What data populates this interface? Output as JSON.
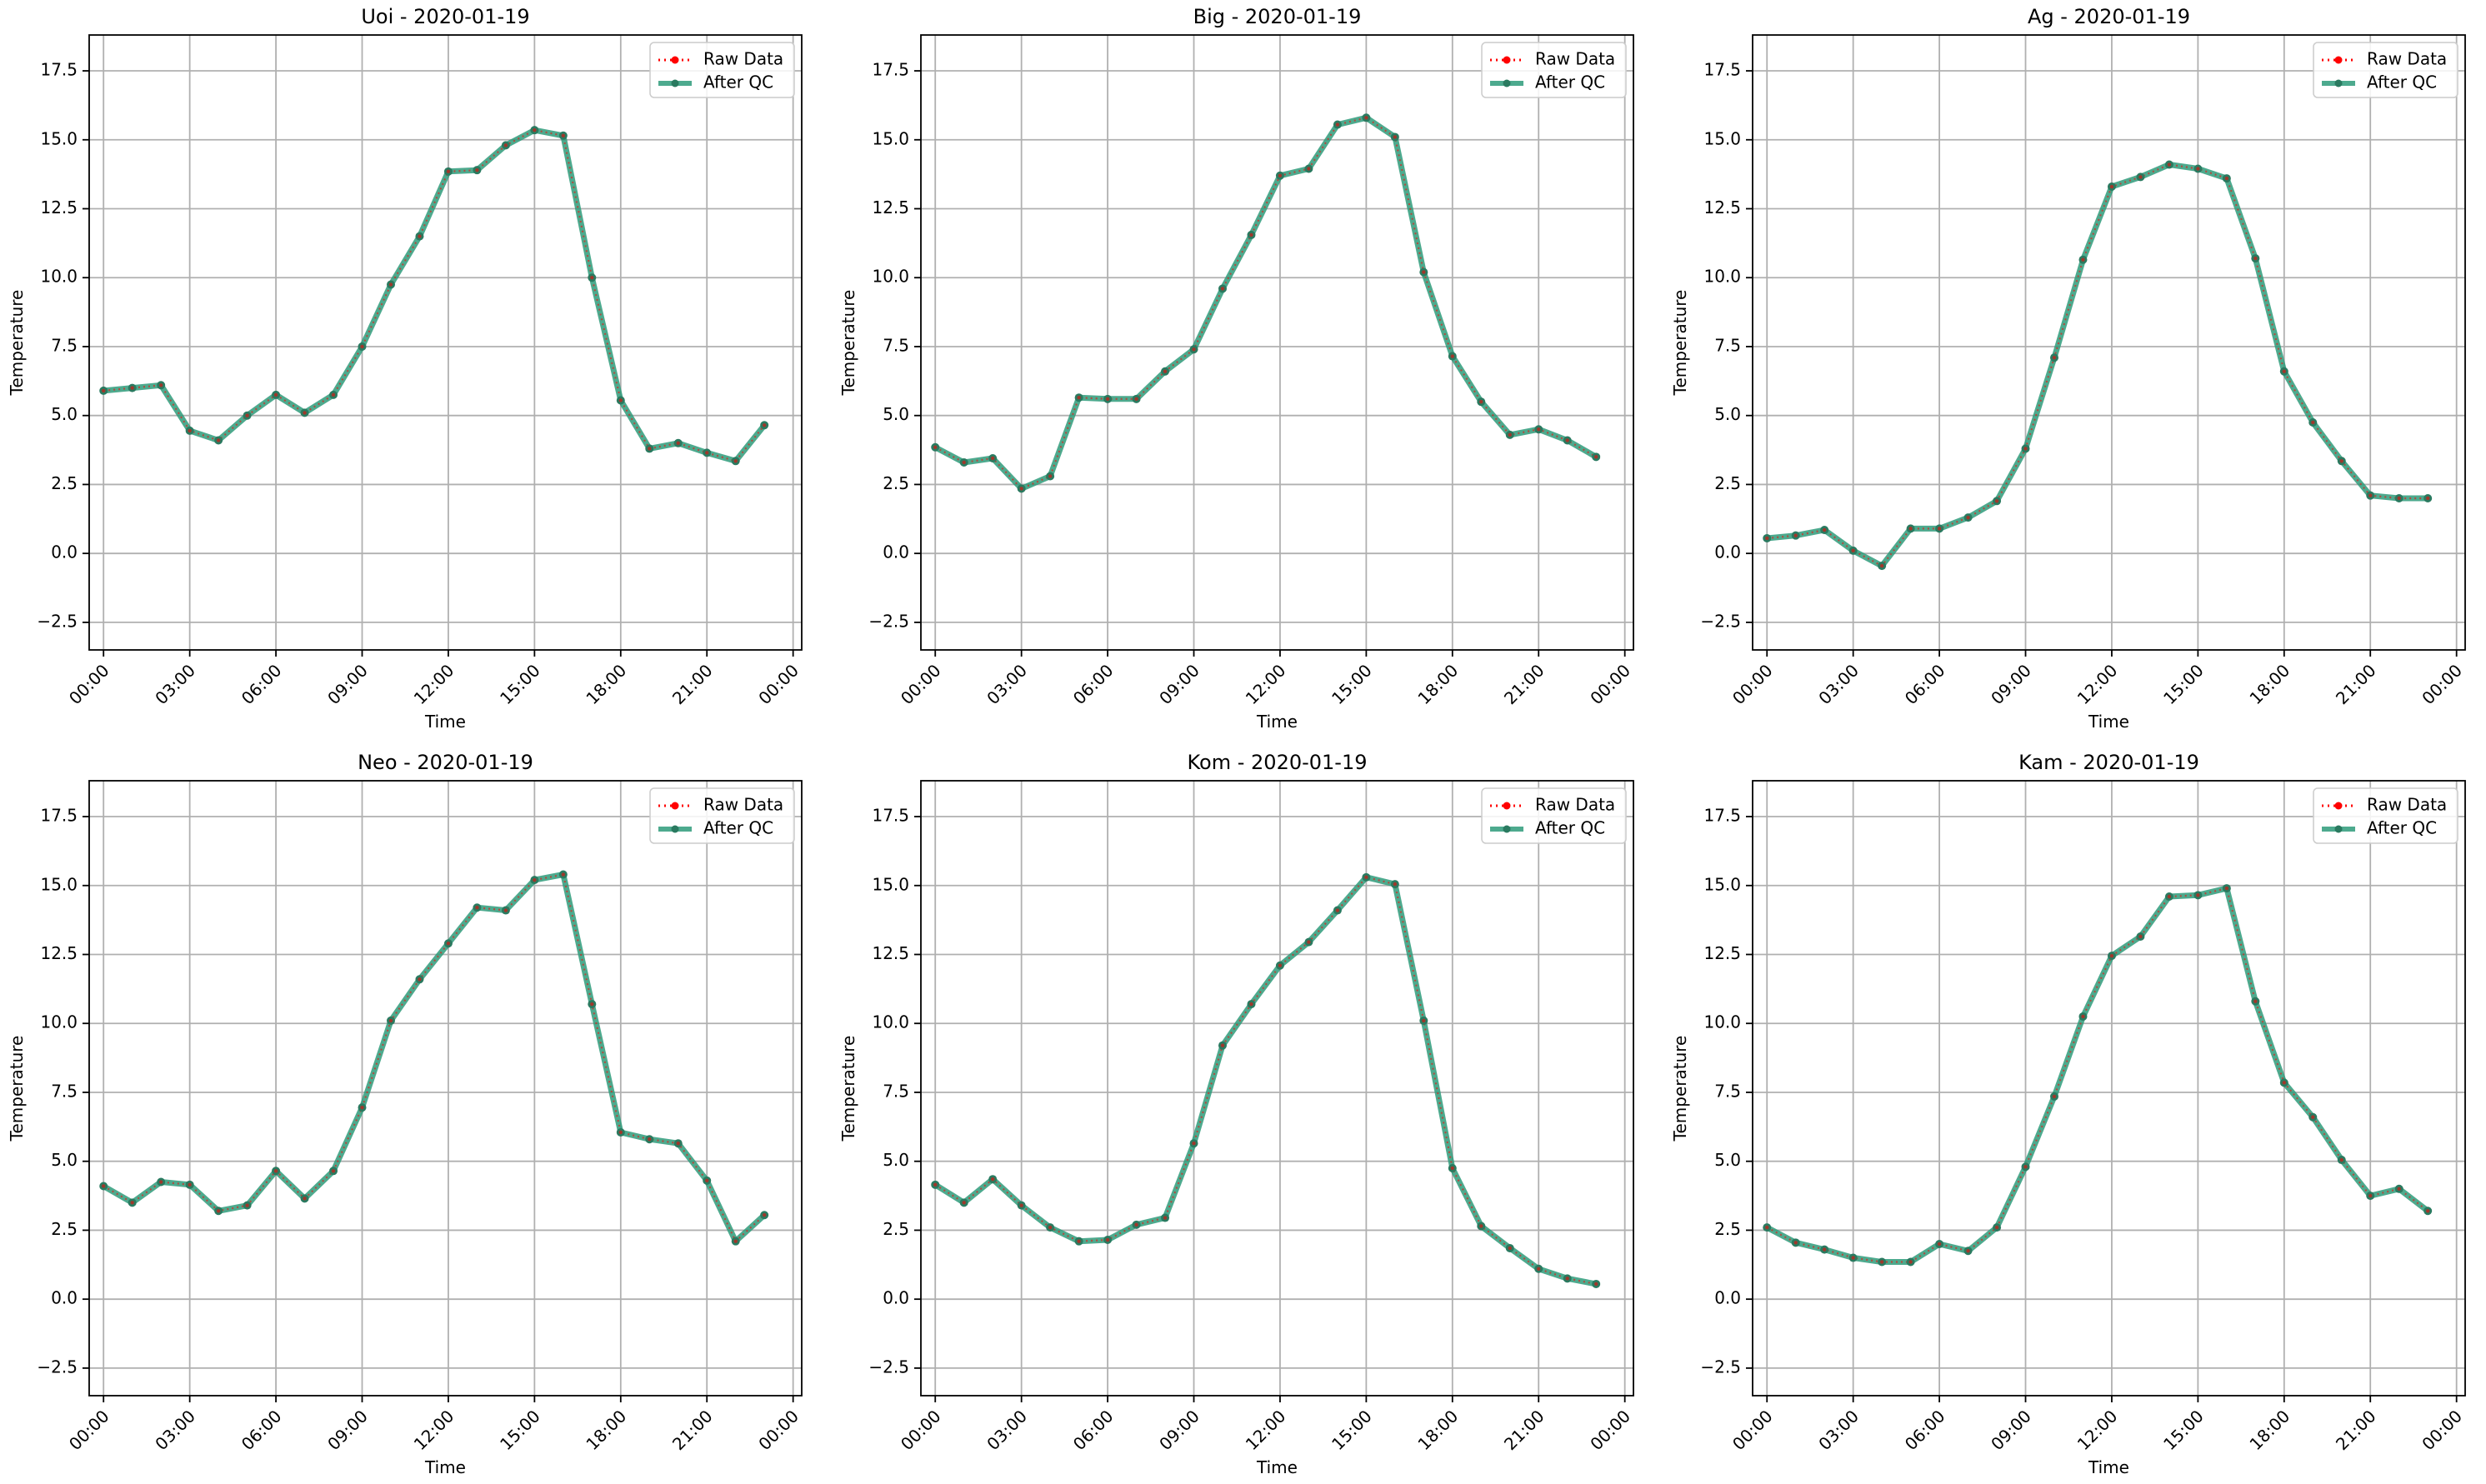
{
  "figure": {
    "colors": {
      "raw": "#ff0000",
      "qc": "#2e9b7a",
      "qc_marker": "#2a7a60",
      "grid": "#b0b0b0",
      "axis": "#000000"
    }
  },
  "chart_data": [
    {
      "type": "line",
      "title": "Uoi - 2020-01-19",
      "xlabel": "Time",
      "ylabel": "Temperature",
      "xticks": [
        "00:00",
        "03:00",
        "06:00",
        "09:00",
        "12:00",
        "15:00",
        "18:00",
        "21:00",
        "00:00"
      ],
      "yticks": [
        "−2.5",
        "0.0",
        "2.5",
        "5.0",
        "7.5",
        "10.0",
        "12.5",
        "15.0",
        "17.5"
      ],
      "ylim": [
        -3.5,
        18.8
      ],
      "xlim_hours": [
        -0.5,
        24.3
      ],
      "x_hours": [
        0,
        1,
        2,
        3,
        4,
        5,
        6,
        7,
        8,
        9,
        10,
        11,
        12,
        13,
        14,
        15,
        16,
        17,
        18,
        19,
        20,
        21,
        22,
        23
      ],
      "legend": [
        "Raw Data",
        "After QC"
      ],
      "legend_position": "top-right",
      "grid": true,
      "series": [
        {
          "name": "Raw Data",
          "values": [
            5.9,
            6.0,
            6.1,
            4.45,
            4.1,
            5.0,
            5.75,
            5.1,
            5.75,
            7.5,
            9.75,
            11.5,
            13.85,
            13.9,
            14.8,
            15.35,
            15.15,
            10.0,
            5.55,
            3.8,
            4.0,
            3.65,
            3.35,
            4.65
          ]
        },
        {
          "name": "After QC",
          "values": [
            5.9,
            6.0,
            6.1,
            4.45,
            4.1,
            5.0,
            5.75,
            5.1,
            5.75,
            7.5,
            9.75,
            11.5,
            13.85,
            13.9,
            14.8,
            15.35,
            15.15,
            10.0,
            5.55,
            3.8,
            4.0,
            3.65,
            3.35,
            4.65
          ]
        }
      ]
    },
    {
      "type": "line",
      "title": "Big - 2020-01-19",
      "xlabel": "Time",
      "ylabel": "Temperature",
      "xticks": [
        "00:00",
        "03:00",
        "06:00",
        "09:00",
        "12:00",
        "15:00",
        "18:00",
        "21:00",
        "00:00"
      ],
      "yticks": [
        "−2.5",
        "0.0",
        "2.5",
        "5.0",
        "7.5",
        "10.0",
        "12.5",
        "15.0",
        "17.5"
      ],
      "ylim": [
        -3.5,
        18.8
      ],
      "xlim_hours": [
        -0.5,
        24.3
      ],
      "x_hours": [
        0,
        1,
        2,
        3,
        4,
        5,
        6,
        7,
        8,
        9,
        10,
        11,
        12,
        13,
        14,
        15,
        16,
        17,
        18,
        19,
        20,
        21,
        22,
        23
      ],
      "legend": [
        "Raw Data",
        "After QC"
      ],
      "legend_position": "top-right",
      "grid": true,
      "series": [
        {
          "name": "Raw Data",
          "values": [
            3.85,
            3.3,
            3.45,
            2.35,
            2.8,
            5.65,
            5.6,
            5.6,
            6.6,
            7.4,
            9.6,
            11.55,
            13.7,
            13.95,
            15.55,
            15.8,
            15.1,
            10.2,
            7.15,
            5.5,
            4.3,
            4.5,
            4.1,
            3.5
          ]
        },
        {
          "name": "After QC",
          "values": [
            3.85,
            3.3,
            3.45,
            2.35,
            2.8,
            5.65,
            5.6,
            5.6,
            6.6,
            7.4,
            9.6,
            11.55,
            13.7,
            13.95,
            15.55,
            15.8,
            15.1,
            10.2,
            7.15,
            5.5,
            4.3,
            4.5,
            4.1,
            3.5
          ]
        }
      ]
    },
    {
      "type": "line",
      "title": "Ag - 2020-01-19",
      "xlabel": "Time",
      "ylabel": "Temperature",
      "xticks": [
        "00:00",
        "03:00",
        "06:00",
        "09:00",
        "12:00",
        "15:00",
        "18:00",
        "21:00",
        "00:00"
      ],
      "yticks": [
        "−2.5",
        "0.0",
        "2.5",
        "5.0",
        "7.5",
        "10.0",
        "12.5",
        "15.0",
        "17.5"
      ],
      "ylim": [
        -3.5,
        18.8
      ],
      "xlim_hours": [
        -0.5,
        24.3
      ],
      "x_hours": [
        0,
        1,
        2,
        3,
        4,
        5,
        6,
        7,
        8,
        9,
        10,
        11,
        12,
        13,
        14,
        15,
        16,
        17,
        18,
        19,
        20,
        21,
        22,
        23
      ],
      "legend": [
        "Raw Data",
        "After QC"
      ],
      "legend_position": "top-right",
      "grid": true,
      "series": [
        {
          "name": "Raw Data",
          "values": [
            0.55,
            0.65,
            0.85,
            0.1,
            -0.45,
            0.9,
            0.9,
            1.3,
            1.9,
            3.8,
            7.1,
            10.65,
            13.3,
            13.65,
            14.1,
            13.95,
            13.6,
            10.7,
            6.6,
            4.75,
            3.35,
            2.1,
            2.0,
            2.0
          ]
        },
        {
          "name": "After QC",
          "values": [
            0.55,
            0.65,
            0.85,
            0.1,
            -0.45,
            0.9,
            0.9,
            1.3,
            1.9,
            3.8,
            7.1,
            10.65,
            13.3,
            13.65,
            14.1,
            13.95,
            13.6,
            10.7,
            6.6,
            4.75,
            3.35,
            2.1,
            2.0,
            2.0
          ]
        }
      ]
    },
    {
      "type": "line",
      "title": "Neo - 2020-01-19",
      "xlabel": "Time",
      "ylabel": "Temperature",
      "xticks": [
        "00:00",
        "03:00",
        "06:00",
        "09:00",
        "12:00",
        "15:00",
        "18:00",
        "21:00",
        "00:00"
      ],
      "yticks": [
        "−2.5",
        "0.0",
        "2.5",
        "5.0",
        "7.5",
        "10.0",
        "12.5",
        "15.0",
        "17.5"
      ],
      "ylim": [
        -3.5,
        18.8
      ],
      "xlim_hours": [
        -0.5,
        24.3
      ],
      "x_hours": [
        0,
        1,
        2,
        3,
        4,
        5,
        6,
        7,
        8,
        9,
        10,
        11,
        12,
        13,
        14,
        15,
        16,
        17,
        18,
        19,
        20,
        21,
        22,
        23
      ],
      "legend": [
        "Raw Data",
        "After QC"
      ],
      "legend_position": "top-right",
      "grid": true,
      "series": [
        {
          "name": "Raw Data",
          "values": [
            4.1,
            3.5,
            4.25,
            4.15,
            3.2,
            3.4,
            4.65,
            3.65,
            4.65,
            6.95,
            10.1,
            11.6,
            12.9,
            14.2,
            14.1,
            15.2,
            15.4,
            10.7,
            6.05,
            5.8,
            5.65,
            4.3,
            2.1,
            3.05
          ]
        },
        {
          "name": "After QC",
          "values": [
            4.1,
            3.5,
            4.25,
            4.15,
            3.2,
            3.4,
            4.65,
            3.65,
            4.65,
            6.95,
            10.1,
            11.6,
            12.9,
            14.2,
            14.1,
            15.2,
            15.4,
            10.7,
            6.05,
            5.8,
            5.65,
            4.3,
            2.1,
            3.05
          ]
        }
      ]
    },
    {
      "type": "line",
      "title": "Kom - 2020-01-19",
      "xlabel": "Time",
      "ylabel": "Temperature",
      "xticks": [
        "00:00",
        "03:00",
        "06:00",
        "09:00",
        "12:00",
        "15:00",
        "18:00",
        "21:00",
        "00:00"
      ],
      "yticks": [
        "−2.5",
        "0.0",
        "2.5",
        "5.0",
        "7.5",
        "10.0",
        "12.5",
        "15.0",
        "17.5"
      ],
      "ylim": [
        -3.5,
        18.8
      ],
      "xlim_hours": [
        -0.5,
        24.3
      ],
      "x_hours": [
        0,
        1,
        2,
        3,
        4,
        5,
        6,
        7,
        8,
        9,
        10,
        11,
        12,
        13,
        14,
        15,
        16,
        17,
        18,
        19,
        20,
        21,
        22,
        23
      ],
      "legend": [
        "Raw Data",
        "After QC"
      ],
      "legend_position": "top-right",
      "grid": true,
      "series": [
        {
          "name": "Raw Data",
          "values": [
            4.15,
            3.5,
            4.35,
            3.4,
            2.6,
            2.1,
            2.15,
            2.7,
            2.95,
            5.65,
            9.2,
            10.7,
            12.1,
            12.95,
            14.1,
            15.3,
            15.05,
            10.1,
            4.75,
            2.65,
            1.85,
            1.1,
            0.75,
            0.55
          ]
        },
        {
          "name": "After QC",
          "values": [
            4.15,
            3.5,
            4.35,
            3.4,
            2.6,
            2.1,
            2.15,
            2.7,
            2.95,
            5.65,
            9.2,
            10.7,
            12.1,
            12.95,
            14.1,
            15.3,
            15.05,
            10.1,
            4.75,
            2.65,
            1.85,
            1.1,
            0.75,
            0.55
          ]
        }
      ]
    },
    {
      "type": "line",
      "title": "Kam - 2020-01-19",
      "xlabel": "Time",
      "ylabel": "Temperature",
      "xticks": [
        "00:00",
        "03:00",
        "06:00",
        "09:00",
        "12:00",
        "15:00",
        "18:00",
        "21:00",
        "00:00"
      ],
      "yticks": [
        "−2.5",
        "0.0",
        "2.5",
        "5.0",
        "7.5",
        "10.0",
        "12.5",
        "15.0",
        "17.5"
      ],
      "ylim": [
        -3.5,
        18.8
      ],
      "xlim_hours": [
        -0.5,
        24.3
      ],
      "x_hours": [
        0,
        1,
        2,
        3,
        4,
        5,
        6,
        7,
        8,
        9,
        10,
        11,
        12,
        13,
        14,
        15,
        16,
        17,
        18,
        19,
        20,
        21,
        22,
        23
      ],
      "legend": [
        "Raw Data",
        "After QC"
      ],
      "legend_position": "top-right",
      "grid": true,
      "series": [
        {
          "name": "Raw Data",
          "values": [
            2.6,
            2.05,
            1.8,
            1.5,
            1.35,
            1.35,
            2.0,
            1.75,
            2.6,
            4.8,
            7.35,
            10.25,
            12.45,
            13.15,
            14.6,
            14.65,
            14.9,
            10.8,
            7.85,
            6.6,
            5.05,
            3.75,
            4.0,
            3.2
          ]
        },
        {
          "name": "After QC",
          "values": [
            2.6,
            2.05,
            1.8,
            1.5,
            1.35,
            1.35,
            2.0,
            1.75,
            2.6,
            4.8,
            7.35,
            10.25,
            12.45,
            13.15,
            14.6,
            14.65,
            14.9,
            10.8,
            7.85,
            6.6,
            5.05,
            3.75,
            4.0,
            3.2
          ]
        }
      ]
    }
  ]
}
